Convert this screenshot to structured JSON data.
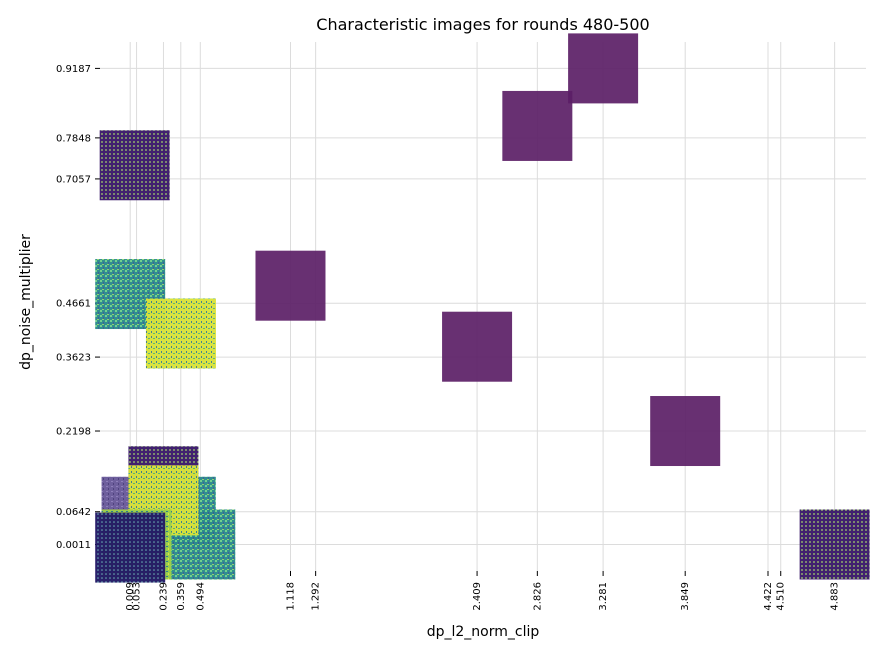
{
  "chart_data": {
    "type": "scatter",
    "title": "Characteristic images for rounds 480-500",
    "xlabel": "dp_l2_norm_clip",
    "ylabel": "dp_noise_multiplier",
    "x_ticks": [
      "0.009",
      "0.053",
      "0.239",
      "0.359",
      "0.494",
      "1.118",
      "1.292",
      "2.409",
      "2.826",
      "3.281",
      "3.849",
      "4.422",
      "4.510",
      "4.883"
    ],
    "y_ticks": [
      "0.9187",
      "0.7848",
      "0.7057",
      "0.4661",
      "0.3623",
      "0.2198",
      "0.0642",
      "0.0011"
    ],
    "xlim": [
      -0.2,
      5.1
    ],
    "ylim": [
      -0.05,
      0.985
    ],
    "grid": true,
    "points": [
      {
        "x": 0.04,
        "y": 0.732,
        "style": "dots-purple"
      },
      {
        "x": 0.009,
        "y": 0.4838,
        "style": "noise-teal"
      },
      {
        "x": 0.36,
        "y": 0.4078,
        "style": "noise-yellow"
      },
      {
        "x": 1.118,
        "y": 0.4999,
        "style": "solid-purple"
      },
      {
        "x": 2.409,
        "y": 0.3823,
        "style": "solid-purple"
      },
      {
        "x": 2.826,
        "y": 0.8078,
        "style": "solid-purple"
      },
      {
        "x": 3.281,
        "y": 0.9187,
        "style": "solid-purple"
      },
      {
        "x": 3.849,
        "y": 0.2198,
        "style": "solid-purple"
      },
      {
        "x": 4.883,
        "y": 0.0011,
        "style": "dots-purple"
      },
      {
        "x": 0.239,
        "y": 0.123,
        "style": "dots-purple"
      },
      {
        "x": 0.359,
        "y": 0.0642,
        "style": "noise-teal"
      },
      {
        "x": 0.053,
        "y": 0.0642,
        "style": "noise-lavender"
      },
      {
        "x": 0.494,
        "y": 0.0011,
        "style": "noise-teal"
      },
      {
        "x": 0.239,
        "y": 0.0861,
        "style": "noise-yellow"
      },
      {
        "x": 0.053,
        "y": 0.0011,
        "style": "noise-yellowgreen"
      },
      {
        "x": 0.009,
        "y": -0.0049,
        "style": "dots-indigo"
      }
    ]
  },
  "colors": {
    "solid-purple": "#5b1e66",
    "dots-purple": "#4b2173",
    "dots-indigo": "#2e1f73",
    "noise-teal": "#2e8c8f",
    "noise-yellow": "#d7e23a",
    "noise-lavender": "#6f5b9a",
    "noise-yellowgreen": "#8fcf4f",
    "grid": "#dcdcdc",
    "axis": "#000000"
  }
}
